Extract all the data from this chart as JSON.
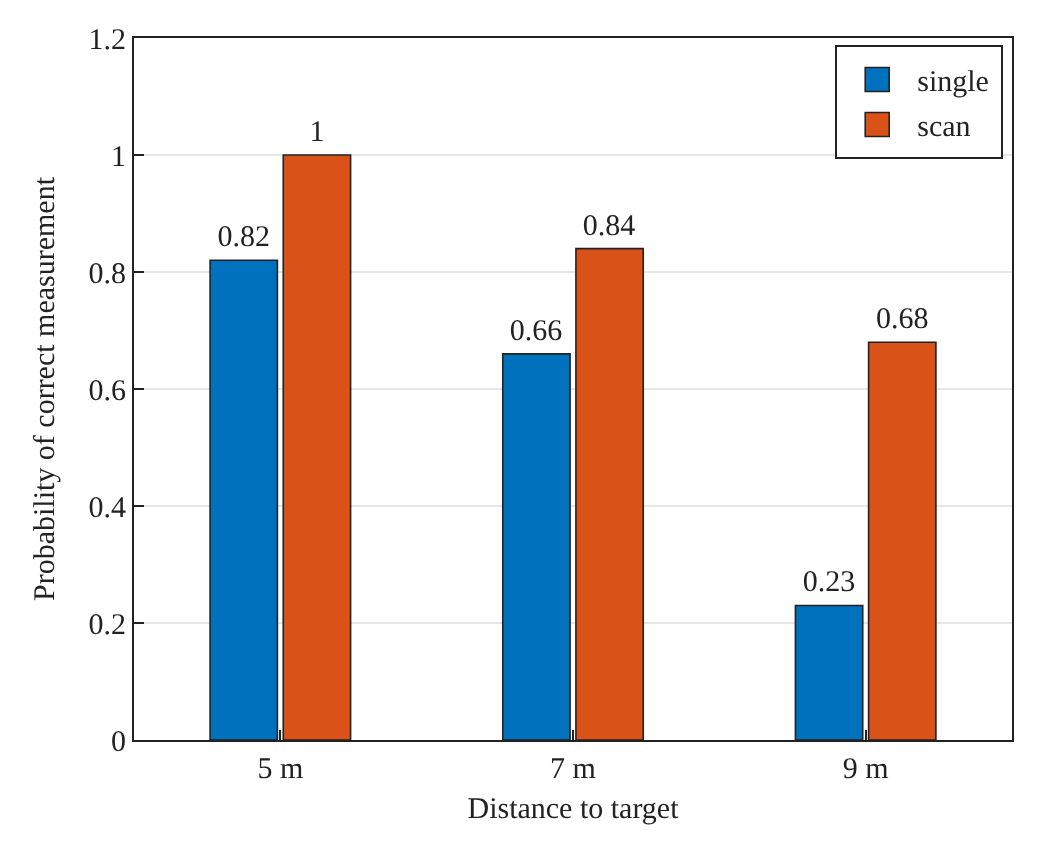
{
  "chart_data": {
    "type": "bar",
    "xlabel": "Distance to target",
    "ylabel": "Probability of correct measurement",
    "categories": [
      "5 m",
      "7 m",
      "9 m"
    ],
    "series": [
      {
        "name": "single",
        "color": "#0072bd",
        "values": [
          0.82,
          0.66,
          0.23
        ]
      },
      {
        "name": "scan",
        "color": "#d95319",
        "values": [
          1,
          0.84,
          0.68
        ]
      }
    ],
    "ylim": [
      0,
      1.2
    ],
    "yticks": [
      0,
      0.2,
      0.4,
      0.6,
      0.8,
      1,
      1.2
    ],
    "grid": "y",
    "legend": "top right",
    "data_labels": true
  }
}
